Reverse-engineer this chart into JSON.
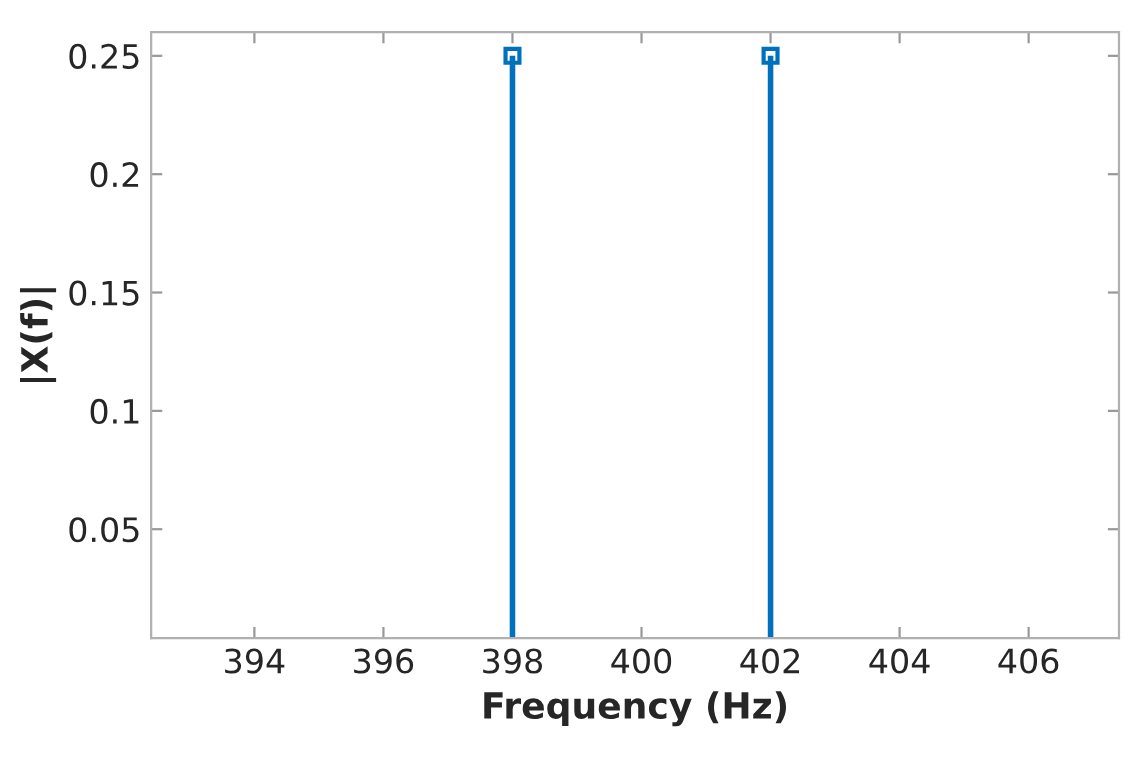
{
  "chart_data": {
    "type": "lollipop",
    "xlabel": "Frequency (Hz)",
    "ylabel": "|X(f)|",
    "x": [
      398,
      402
    ],
    "series": [
      {
        "color": "#0072bd",
        "values": [
          0.25,
          0.25
        ]
      }
    ],
    "xlim": [
      392.4,
      407.4
    ],
    "xticks": [
      394,
      396,
      398,
      400,
      402,
      404,
      406
    ],
    "ylim": [
      0.004,
      0.26
    ],
    "yticks": [
      0.05,
      0.1,
      0.15,
      0.2,
      0.25
    ],
    "marker": "square",
    "legend": false
  }
}
